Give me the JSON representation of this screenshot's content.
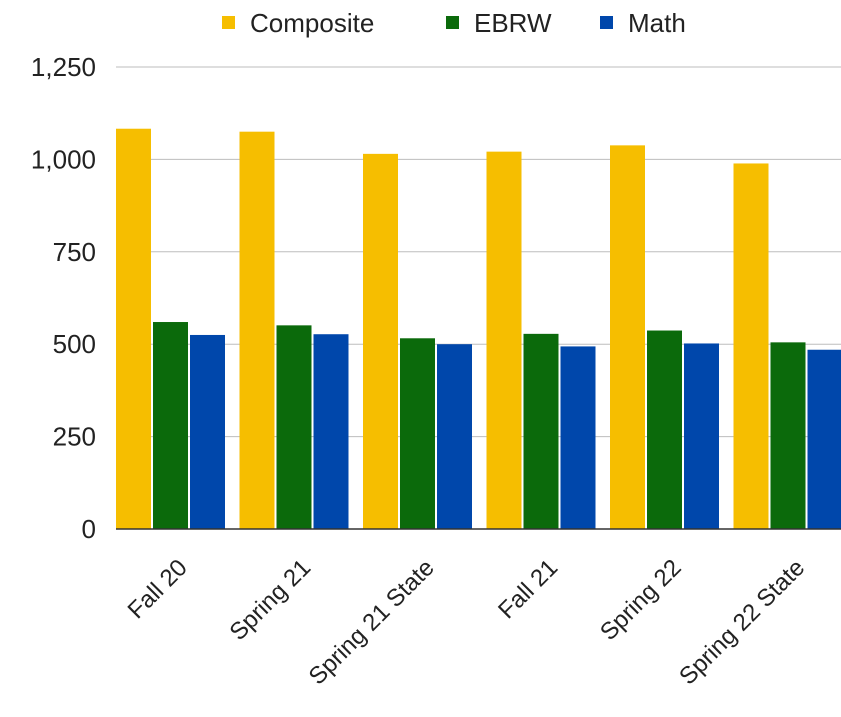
{
  "chart_data": {
    "type": "bar",
    "title": "",
    "xlabel": "",
    "ylabel": "",
    "categories": [
      "Fall 20",
      "Spring 21",
      "Spring 21 State",
      "Fall 21",
      "Spring 22",
      "Spring 22 State"
    ],
    "series": [
      {
        "name": "Composite",
        "color": "#F6BE00",
        "values": [
          1083,
          1075,
          1015,
          1021,
          1038,
          989
        ]
      },
      {
        "name": "EBRW",
        "color": "#0B6A0B",
        "values": [
          560,
          551,
          516,
          528,
          537,
          505
        ]
      },
      {
        "name": "Math",
        "color": "#0047AB",
        "values": [
          525,
          527,
          500,
          494,
          502,
          485
        ]
      }
    ],
    "ylim": [
      0,
      1250
    ],
    "yticks": [
      0,
      250,
      500,
      750,
      1000,
      1250
    ],
    "ytick_labels": [
      "0",
      "250",
      "500",
      "750",
      "1,000",
      "1,250"
    ],
    "grid": true,
    "legend": "top"
  }
}
